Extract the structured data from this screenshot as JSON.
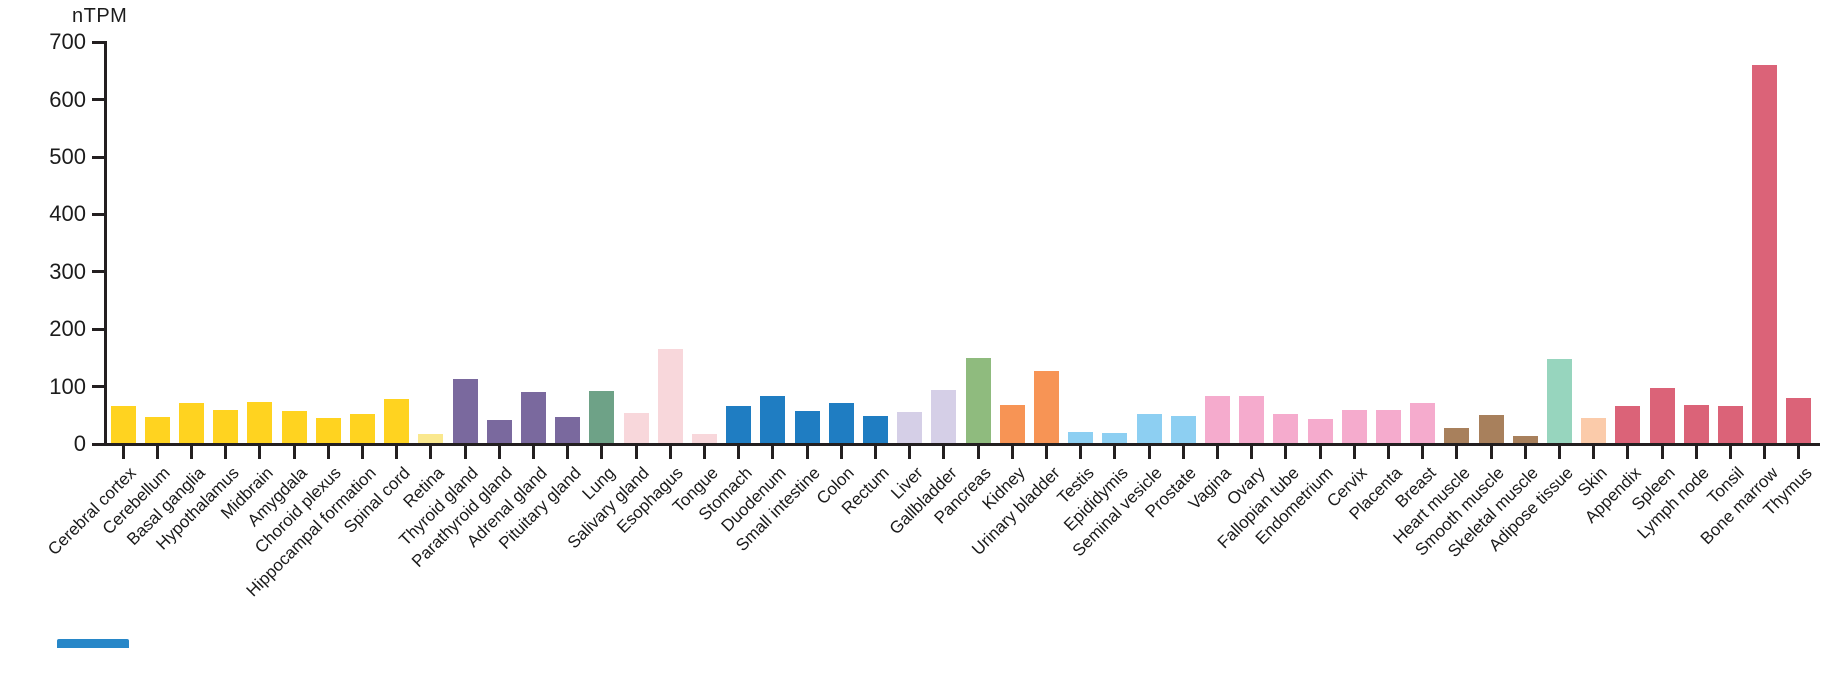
{
  "chart_data": {
    "type": "bar",
    "title": "",
    "xlabel": "",
    "ylabel": "nTPM",
    "ylim": [
      0,
      700
    ],
    "yticks": [
      0,
      100,
      200,
      300,
      400,
      500,
      600,
      700
    ],
    "grid": false,
    "legend": "none",
    "categories": [
      "Cerebral cortex",
      "Cerebellum",
      "Basal ganglia",
      "Hypothalamus",
      "Midbrain",
      "Amygdala",
      "Choroid plexus",
      "Hippocampal formation",
      "Spinal cord",
      "Retina",
      "Thyroid gland",
      "Parathyroid gland",
      "Adrenal gland",
      "Pituitary gland",
      "Lung",
      "Salivary gland",
      "Esophagus",
      "Tongue",
      "Stomach",
      "Duodenum",
      "Small intestine",
      "Colon",
      "Rectum",
      "Liver",
      "Gallbladder",
      "Pancreas",
      "Kidney",
      "Urinary bladder",
      "Testis",
      "Epididymis",
      "Seminal vesicle",
      "Prostate",
      "Vagina",
      "Ovary",
      "Fallopian tube",
      "Endometrium",
      "Cervix",
      "Placenta",
      "Breast",
      "Heart muscle",
      "Smooth muscle",
      "Skeletal muscle",
      "Adipose tissue",
      "Skin",
      "Appendix",
      "Spleen",
      "Lymph node",
      "Tonsil",
      "Bone marrow",
      "Thymus"
    ],
    "values": [
      65,
      46,
      70,
      58,
      72,
      55,
      44,
      50,
      76,
      16,
      112,
      40,
      89,
      45,
      90,
      52,
      163,
      15,
      64,
      82,
      56,
      70,
      47,
      54,
      93,
      148,
      66,
      126,
      20,
      18,
      50,
      47,
      82,
      82,
      51,
      42,
      57,
      58,
      69,
      26,
      49,
      13,
      147,
      44,
      64,
      96,
      66,
      64,
      659,
      79
    ],
    "bar_colors": [
      "#ffd320",
      "#ffd320",
      "#ffd320",
      "#ffd320",
      "#ffd320",
      "#ffd320",
      "#ffd320",
      "#ffd320",
      "#ffd320",
      "#fae88e",
      "#7a699e",
      "#7a699e",
      "#7a699e",
      "#7a699e",
      "#6ea287",
      "#f8d7db",
      "#f8d7db",
      "#f8d7db",
      "#1f7dc2",
      "#1f7dc2",
      "#1f7dc2",
      "#1f7dc2",
      "#1f7dc2",
      "#d5cfe7",
      "#d5cfe7",
      "#8fbb7e",
      "#f79455",
      "#f79455",
      "#8dcff2",
      "#8dcff2",
      "#8dcff2",
      "#8dcff2",
      "#f5abcd",
      "#f5abcd",
      "#f5abcd",
      "#f5abcd",
      "#f5abcd",
      "#f5abcd",
      "#f5abcd",
      "#a8805c",
      "#a8805c",
      "#a8805c",
      "#97d5be",
      "#fbcbaa",
      "#db6378",
      "#db6378",
      "#db6378",
      "#db6378",
      "#db6378",
      "#db6378"
    ],
    "axis_color": "#231f20",
    "tick_label_color": "#1c1c1c"
  }
}
